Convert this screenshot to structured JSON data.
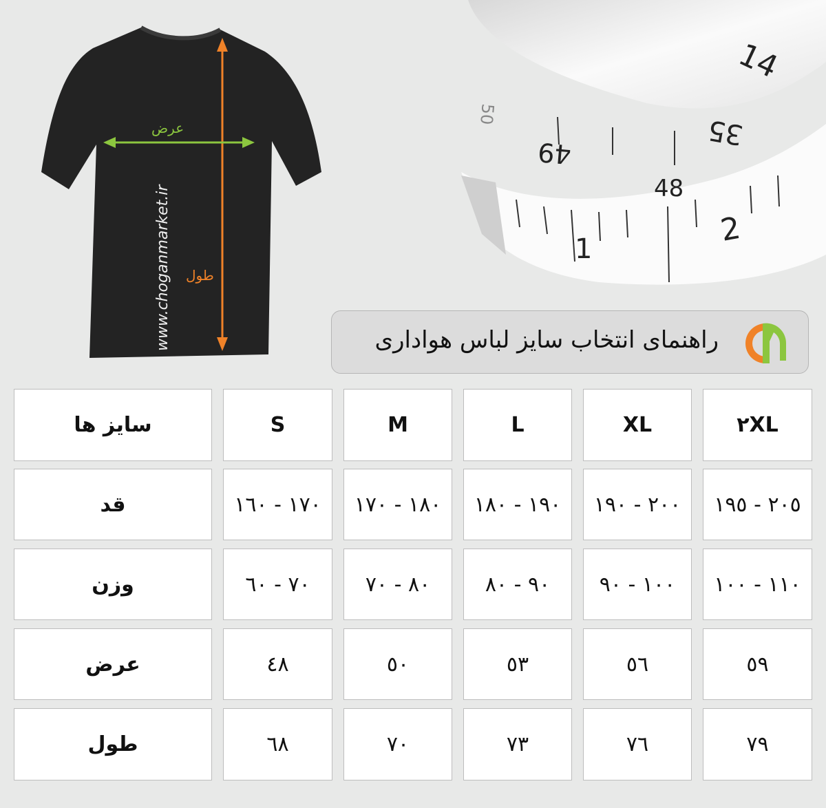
{
  "title": "راهنمای انتخاب سایز لباس هواداری",
  "logo_text": "CM",
  "brand_colors": {
    "orange": "#f08228",
    "green": "#8cc63f"
  },
  "shirt": {
    "watermark": "www.choganmarket.ir",
    "width_label": "عرض",
    "length_label": "طول"
  },
  "tape_numbers": [
    "14",
    "35",
    "49",
    "48",
    "2",
    "1",
    "50"
  ],
  "table": {
    "corner_label": "سایز ها",
    "sizes": [
      "S",
      "M",
      "L",
      "XL",
      "٢XL"
    ],
    "rows": [
      {
        "label": "قد",
        "values": [
          "١٧٠ - ١٦٠",
          "١٨٠ - ١٧٠",
          "١٩٠ - ١٨٠",
          "٢٠٠ - ١٩٠",
          "٢٠٥ - ١٩٥"
        ]
      },
      {
        "label": "وزن",
        "values": [
          "٧٠ - ٦٠",
          "٨٠ - ٧٠",
          "٩٠ - ٨٠",
          "١٠٠ - ٩٠",
          "١١٠ - ١٠٠"
        ]
      },
      {
        "label": "عرض",
        "values": [
          "٤٨",
          "٥٠",
          "٥٣",
          "٥٦",
          "٥٩"
        ]
      },
      {
        "label": "طول",
        "values": [
          "٦٨",
          "٧٠",
          "٧٣",
          "٧٦",
          "٧٩"
        ]
      }
    ]
  }
}
